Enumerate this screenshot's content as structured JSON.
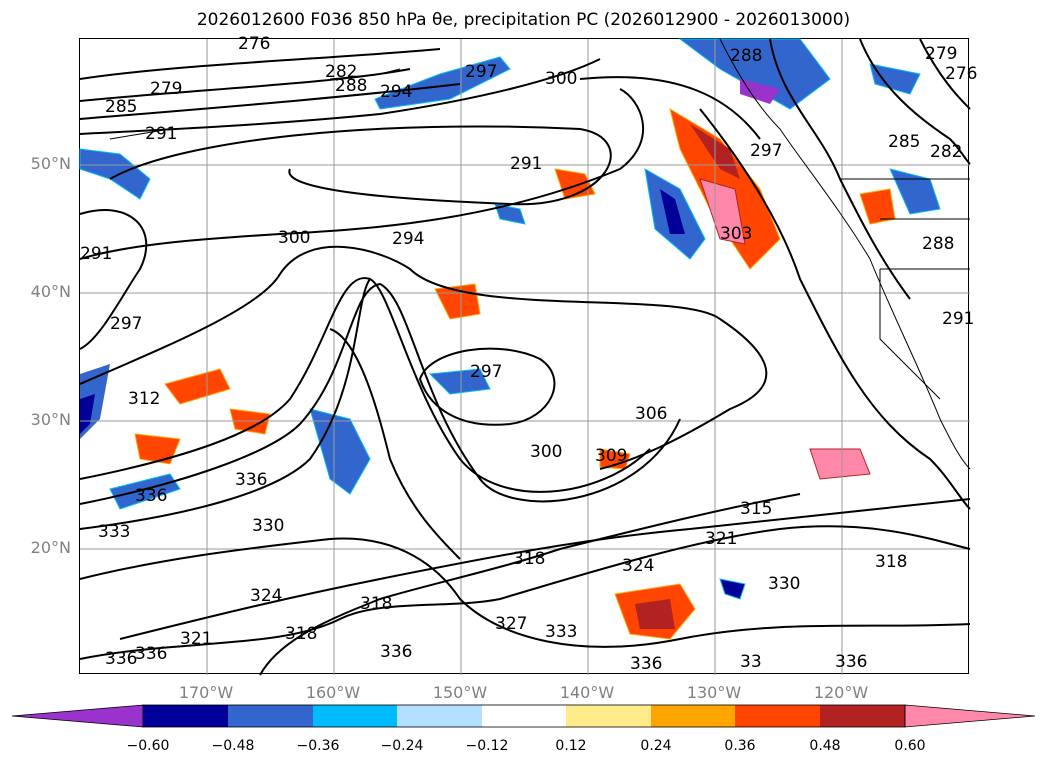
{
  "title": "2026012600 F036 850 hPa θe, precipitation PC (2026012900 - 2026013000)",
  "latitude_labels": [
    "50°N",
    "40°N",
    "30°N",
    "20°N"
  ],
  "longitude_labels": [
    "170°W",
    "160°W",
    "150°W",
    "140°W",
    "130°W",
    "120°W"
  ],
  "colorbar": {
    "ticks": [
      "−0.60",
      "−0.48",
      "−0.36",
      "−0.24",
      "−0.12",
      "0.12",
      "0.24",
      "0.36",
      "0.48",
      "0.60"
    ],
    "colors": [
      "#9933cc",
      "#000099",
      "#3366cc",
      "#00bbff",
      "#b3e0ff",
      "#ffffff",
      "#ffeb8a",
      "#ffa500",
      "#ff4500",
      "#b22222",
      "#ff88aa"
    ]
  },
  "contour_labels": [
    "276",
    "279",
    "285",
    "291",
    "282",
    "288",
    "294",
    "297",
    "300",
    "291",
    "291",
    "300",
    "294",
    "297",
    "312",
    "336",
    "336",
    "333",
    "330",
    "324",
    "318",
    "336",
    "336",
    "321",
    "318",
    "327",
    "333",
    "336",
    "297",
    "300",
    "306",
    "309",
    "318",
    "324",
    "321",
    "315",
    "330",
    "318",
    "336",
    "336",
    "303",
    "297",
    "285",
    "282",
    "288",
    "291",
    "279",
    "276",
    "288",
    "33"
  ]
}
